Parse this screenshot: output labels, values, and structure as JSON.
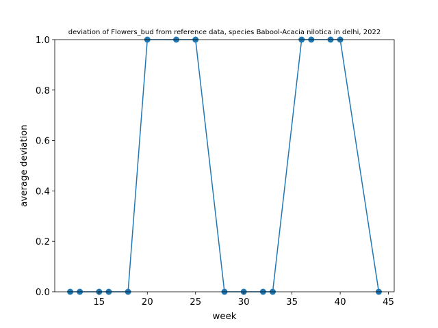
{
  "chart_data": {
    "type": "line",
    "title": "deviation of Flowers_bud from reference data, species Babool-Acacia nilotica in delhi, 2022",
    "xlabel": "week",
    "ylabel": "average deviation",
    "xlim": [
      10.4,
      45.6
    ],
    "ylim": [
      0,
      1
    ],
    "xticks": [
      15,
      20,
      25,
      30,
      35,
      40,
      45
    ],
    "yticks": [
      0.0,
      0.2,
      0.4,
      0.6,
      0.8,
      1.0
    ],
    "xtick_labels": [
      "15",
      "20",
      "25",
      "30",
      "35",
      "40",
      "45"
    ],
    "ytick_labels": [
      "0.0",
      "0.2",
      "0.4",
      "0.6",
      "0.8",
      "1.0"
    ],
    "grid": false,
    "series": [
      {
        "color": "#1f77b4",
        "marker": "circle",
        "x": [
          12,
          13,
          15,
          16,
          18,
          20,
          23,
          25,
          28,
          30,
          32,
          33,
          36,
          37,
          39,
          40,
          44
        ],
        "y": [
          0,
          0,
          0,
          0,
          0,
          1,
          1,
          1,
          0,
          0,
          0,
          0,
          1,
          1,
          1,
          1,
          0
        ]
      }
    ]
  }
}
